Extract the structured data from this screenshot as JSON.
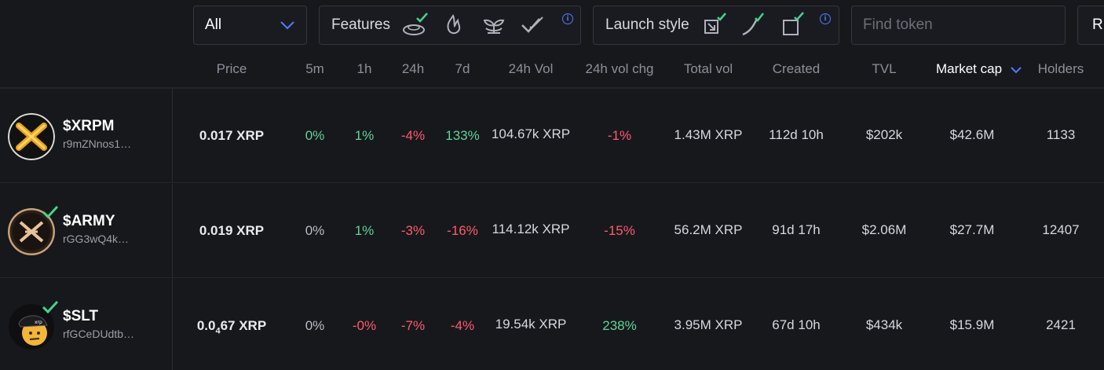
{
  "filters": {
    "select_value": "All",
    "features_label": "Features",
    "launch_label": "Launch style",
    "search_placeholder": "Find token",
    "right_button": "R"
  },
  "colors": {
    "background": "#17181c",
    "positive": "#5fd499",
    "negative": "#ff5b6e",
    "accent": "#4f7cff",
    "check": "#46d38a"
  },
  "columns": {
    "price": "Price",
    "m5": "5m",
    "h1": "1h",
    "h24": "24h",
    "d7": "7d",
    "vol24": "24h Vol",
    "volchg": "24h vol chg",
    "totalvol": "Total vol",
    "created": "Created",
    "tvl": "TVL",
    "mcap": "Market cap",
    "holders": "Holders"
  },
  "rows": [
    {
      "symbol": "$XRPM",
      "address": "r9mZNnos1…",
      "price": "0.017 XRP",
      "m5": "0%",
      "h1": "1%",
      "h24": "-4%",
      "d7": "133%",
      "vol24": "104.67k XRP",
      "volchg": "-1%",
      "totalvol": "1.43M XRP",
      "created": "112d 10h",
      "tvl": "$202k",
      "mcap": "$42.6M",
      "holders": "1133"
    },
    {
      "symbol": "$ARMY",
      "address": "rGG3wQ4k…",
      "price": "0.019 XRP",
      "m5": "0%",
      "h1": "1%",
      "h24": "-3%",
      "d7": "-16%",
      "vol24": "114.12k XRP",
      "volchg": "-15%",
      "totalvol": "56.2M XRP",
      "created": "91d 17h",
      "tvl": "$2.06M",
      "mcap": "$27.7M",
      "holders": "12407"
    },
    {
      "symbol": "$SLT",
      "address": "rfGCeDUdtb…",
      "price_lead": "0.0",
      "price_sub": "4",
      "price_tail": "67 XRP",
      "m5": "0%",
      "h1": "-0%",
      "h24": "-7%",
      "d7": "-4%",
      "vol24": "19.54k XRP",
      "volchg": "238%",
      "totalvol": "3.95M XRP",
      "created": "67d 10h",
      "tvl": "$434k",
      "mcap": "$15.9M",
      "holders": "2421"
    }
  ]
}
